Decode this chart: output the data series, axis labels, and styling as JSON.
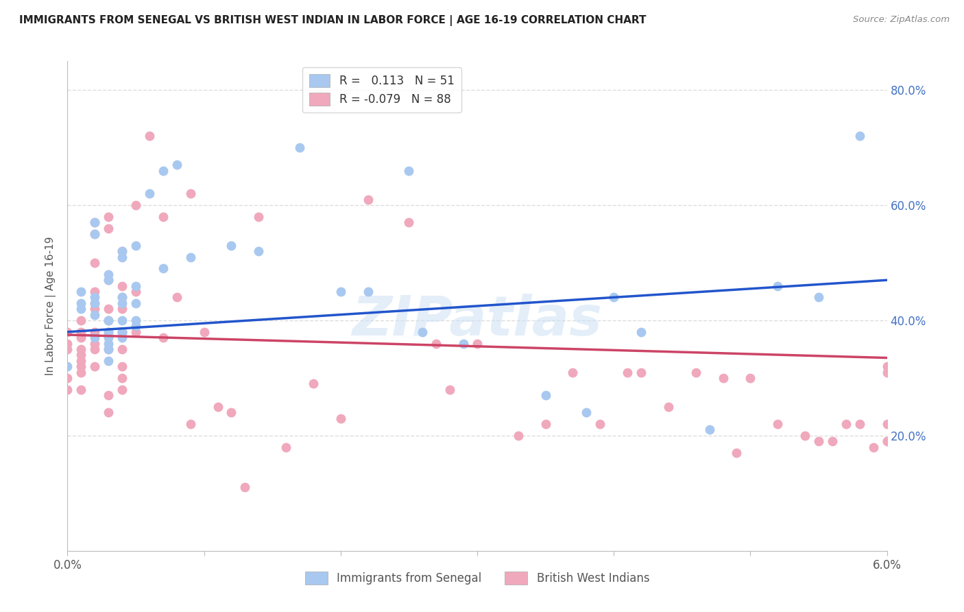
{
  "title": "IMMIGRANTS FROM SENEGAL VS BRITISH WEST INDIAN IN LABOR FORCE | AGE 16-19 CORRELATION CHART",
  "source": "Source: ZipAtlas.com",
  "ylabel": "In Labor Force | Age 16-19",
  "xmin": 0.0,
  "xmax": 0.06,
  "ymin": 0.0,
  "ymax": 0.85,
  "yticks": [
    0.2,
    0.4,
    0.6,
    0.8
  ],
  "ytick_labels": [
    "20.0%",
    "40.0%",
    "60.0%",
    "80.0%"
  ],
  "grid_color": "#dddddd",
  "background_color": "#ffffff",
  "senegal_color": "#a8c8f0",
  "bwi_color": "#f0a8bc",
  "senegal_line_color": "#2255cc",
  "bwi_line_color": "#cc4466",
  "R_senegal": "0.113",
  "N_senegal": "51",
  "R_bwi": "-0.079",
  "N_bwi": "88",
  "watermark": "ZIPatlas",
  "senegal_line_x": [
    0.0,
    0.06
  ],
  "senegal_line_y": [
    0.38,
    0.47
  ],
  "bwi_line_x": [
    0.0,
    0.06
  ],
  "bwi_line_y": [
    0.375,
    0.335
  ],
  "senegal_x": [
    0.0,
    0.001,
    0.001,
    0.001,
    0.002,
    0.002,
    0.002,
    0.002,
    0.002,
    0.002,
    0.003,
    0.003,
    0.003,
    0.003,
    0.003,
    0.003,
    0.003,
    0.003,
    0.004,
    0.004,
    0.004,
    0.004,
    0.004,
    0.004,
    0.004,
    0.005,
    0.005,
    0.005,
    0.005,
    0.005,
    0.006,
    0.007,
    0.007,
    0.008,
    0.009,
    0.012,
    0.014,
    0.017,
    0.02,
    0.022,
    0.025,
    0.029,
    0.035,
    0.038,
    0.042,
    0.047,
    0.052,
    0.055,
    0.058,
    0.04,
    0.026
  ],
  "senegal_y": [
    0.32,
    0.43,
    0.45,
    0.42,
    0.55,
    0.57,
    0.44,
    0.43,
    0.41,
    0.37,
    0.47,
    0.48,
    0.4,
    0.38,
    0.36,
    0.35,
    0.33,
    0.37,
    0.52,
    0.51,
    0.44,
    0.43,
    0.4,
    0.38,
    0.37,
    0.53,
    0.46,
    0.43,
    0.4,
    0.39,
    0.62,
    0.66,
    0.49,
    0.67,
    0.51,
    0.53,
    0.52,
    0.7,
    0.45,
    0.45,
    0.66,
    0.36,
    0.27,
    0.24,
    0.38,
    0.21,
    0.46,
    0.44,
    0.72,
    0.44,
    0.38
  ],
  "bwi_x": [
    0.0,
    0.0,
    0.0,
    0.0,
    0.001,
    0.001,
    0.001,
    0.001,
    0.001,
    0.001,
    0.001,
    0.001,
    0.001,
    0.002,
    0.002,
    0.002,
    0.002,
    0.002,
    0.002,
    0.002,
    0.002,
    0.002,
    0.002,
    0.003,
    0.003,
    0.003,
    0.003,
    0.003,
    0.003,
    0.003,
    0.003,
    0.003,
    0.004,
    0.004,
    0.004,
    0.004,
    0.004,
    0.004,
    0.004,
    0.004,
    0.004,
    0.004,
    0.005,
    0.005,
    0.005,
    0.006,
    0.007,
    0.007,
    0.008,
    0.009,
    0.009,
    0.01,
    0.011,
    0.012,
    0.013,
    0.014,
    0.016,
    0.018,
    0.02,
    0.022,
    0.025,
    0.027,
    0.028,
    0.03,
    0.033,
    0.035,
    0.037,
    0.039,
    0.041,
    0.042,
    0.044,
    0.046,
    0.048,
    0.049,
    0.05,
    0.052,
    0.054,
    0.055,
    0.056,
    0.057,
    0.058,
    0.059,
    0.06,
    0.06,
    0.06,
    0.06,
    0.06,
    0.0
  ],
  "bwi_y": [
    0.38,
    0.36,
    0.35,
    0.28,
    0.4,
    0.38,
    0.37,
    0.35,
    0.34,
    0.33,
    0.32,
    0.31,
    0.28,
    0.57,
    0.55,
    0.5,
    0.45,
    0.43,
    0.42,
    0.38,
    0.36,
    0.35,
    0.32,
    0.58,
    0.56,
    0.47,
    0.42,
    0.4,
    0.38,
    0.35,
    0.27,
    0.24,
    0.52,
    0.46,
    0.44,
    0.42,
    0.38,
    0.38,
    0.35,
    0.32,
    0.3,
    0.28,
    0.6,
    0.45,
    0.38,
    0.72,
    0.58,
    0.37,
    0.44,
    0.62,
    0.22,
    0.38,
    0.25,
    0.24,
    0.11,
    0.58,
    0.18,
    0.29,
    0.23,
    0.61,
    0.57,
    0.36,
    0.28,
    0.36,
    0.2,
    0.22,
    0.31,
    0.22,
    0.31,
    0.31,
    0.25,
    0.31,
    0.3,
    0.17,
    0.3,
    0.22,
    0.2,
    0.19,
    0.19,
    0.22,
    0.22,
    0.18,
    0.32,
    0.31,
    0.22,
    0.19,
    0.19,
    0.3
  ]
}
